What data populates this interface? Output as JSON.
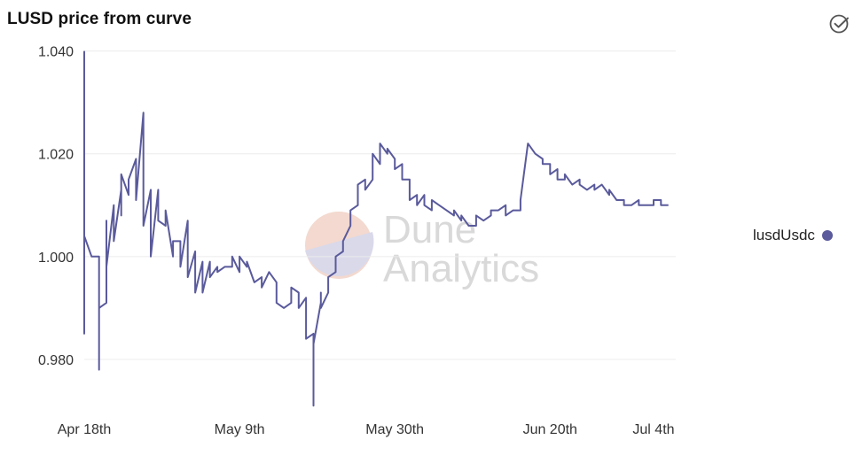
{
  "title": "LUSD price from curve",
  "legend": {
    "label": "lusdUsdc"
  },
  "watermark": {
    "line1": "Dune",
    "line2": "Analytics"
  },
  "colors": {
    "series": "#5a5a9c",
    "grid": "#ececec",
    "watermark_top": "#f3d9cf",
    "watermark_bottom": "#d9d9ea"
  },
  "icons": {
    "check": "check-circle-icon"
  },
  "chart_data": {
    "type": "line",
    "xlabel": "",
    "ylabel": "",
    "ylim": [
      0.97,
      1.042
    ],
    "xlim": [
      "2022-04-18",
      "2022-07-07"
    ],
    "y_ticks": [
      {
        "value": 1.04,
        "label": "1.040"
      },
      {
        "value": 1.02,
        "label": "1.020"
      },
      {
        "value": 1.0,
        "label": "1.000"
      },
      {
        "value": 0.98,
        "label": "0.980"
      }
    ],
    "x_ticks": [
      {
        "value": "2022-04-18",
        "label": "Apr 18th"
      },
      {
        "value": "2022-05-09",
        "label": "May 9th"
      },
      {
        "value": "2022-05-30",
        "label": "May 30th"
      },
      {
        "value": "2022-06-20",
        "label": "Jun 20th"
      },
      {
        "value": "2022-07-04",
        "label": "Jul 4th"
      }
    ],
    "grid": true,
    "legend_position": "right",
    "series": [
      {
        "name": "lusdUsdc",
        "x": [
          "2022-04-16",
          "2022-04-18",
          "2022-04-18",
          "2022-04-18",
          "2022-04-18",
          "2022-04-19",
          "2022-04-19",
          "2022-04-19",
          "2022-04-20",
          "2022-04-20",
          "2022-04-20",
          "2022-04-21",
          "2022-04-21",
          "2022-04-21",
          "2022-04-22",
          "2022-04-22",
          "2022-04-23",
          "2022-04-23",
          "2022-04-23",
          "2022-04-24",
          "2022-04-24",
          "2022-04-25",
          "2022-04-25",
          "2022-04-26",
          "2022-04-26",
          "2022-04-27",
          "2022-04-27",
          "2022-04-28",
          "2022-04-28",
          "2022-04-29",
          "2022-04-29",
          "2022-04-30",
          "2022-04-30",
          "2022-05-01",
          "2022-05-01",
          "2022-05-02",
          "2022-05-02",
          "2022-05-03",
          "2022-05-03",
          "2022-05-04",
          "2022-05-04",
          "2022-05-05",
          "2022-05-05",
          "2022-05-06",
          "2022-05-06",
          "2022-05-07",
          "2022-05-08",
          "2022-05-08",
          "2022-05-09",
          "2022-05-09",
          "2022-05-10",
          "2022-05-10",
          "2022-05-11",
          "2022-05-12",
          "2022-05-12",
          "2022-05-13",
          "2022-05-14",
          "2022-05-14",
          "2022-05-15",
          "2022-05-16",
          "2022-05-16",
          "2022-05-17",
          "2022-05-17",
          "2022-05-18",
          "2022-05-18",
          "2022-05-19",
          "2022-05-19",
          "2022-05-19",
          "2022-05-20",
          "2022-05-20",
          "2022-05-20",
          "2022-05-21",
          "2022-05-21",
          "2022-05-22",
          "2022-05-22",
          "2022-05-23",
          "2022-05-23",
          "2022-05-24",
          "2022-05-24",
          "2022-05-25",
          "2022-05-25",
          "2022-05-26",
          "2022-05-26",
          "2022-05-27",
          "2022-05-27",
          "2022-05-28",
          "2022-05-28",
          "2022-05-29",
          "2022-05-29",
          "2022-05-30",
          "2022-05-30",
          "2022-05-31",
          "2022-05-31",
          "2022-06-01",
          "2022-06-01",
          "2022-06-02",
          "2022-06-02",
          "2022-06-03",
          "2022-06-03",
          "2022-06-04",
          "2022-06-04",
          "2022-06-05",
          "2022-06-05",
          "2022-06-06",
          "2022-06-07",
          "2022-06-07",
          "2022-06-08",
          "2022-06-08",
          "2022-06-09",
          "2022-06-10",
          "2022-06-10",
          "2022-06-11",
          "2022-06-12",
          "2022-06-12",
          "2022-06-13",
          "2022-06-14",
          "2022-06-14",
          "2022-06-15",
          "2022-06-16",
          "2022-06-16",
          "2022-06-17",
          "2022-06-18",
          "2022-06-18",
          "2022-06-19",
          "2022-06-19",
          "2022-06-20",
          "2022-06-20",
          "2022-06-21",
          "2022-06-21",
          "2022-06-22",
          "2022-06-22",
          "2022-06-23",
          "2022-06-24",
          "2022-06-24",
          "2022-06-25",
          "2022-06-26",
          "2022-06-26",
          "2022-06-27",
          "2022-06-28",
          "2022-06-28",
          "2022-06-29",
          "2022-06-30",
          "2022-06-30",
          "2022-07-01",
          "2022-07-02",
          "2022-07-02",
          "2022-07-03",
          "2022-07-04",
          "2022-07-04",
          "2022-07-05",
          "2022-07-05",
          "2022-07-06"
        ],
        "y": [
          1.04,
          1.04,
          1.0,
          0.985,
          1.004,
          1.0,
          1.0,
          1.0,
          1.0,
          0.978,
          0.99,
          0.991,
          1.007,
          0.998,
          1.01,
          1.003,
          1.013,
          1.008,
          1.016,
          1.012,
          1.015,
          1.019,
          1.011,
          1.028,
          1.006,
          1.013,
          1.0,
          1.013,
          1.007,
          1.006,
          1.009,
          1.0,
          1.003,
          1.003,
          0.998,
          1.007,
          0.996,
          1.001,
          0.993,
          0.999,
          0.993,
          0.999,
          0.996,
          0.998,
          0.997,
          0.998,
          0.998,
          1.0,
          0.997,
          1.0,
          0.998,
          0.999,
          0.995,
          0.996,
          0.994,
          0.997,
          0.995,
          0.991,
          0.99,
          0.991,
          0.994,
          0.993,
          0.99,
          0.992,
          0.984,
          0.985,
          0.971,
          0.983,
          0.991,
          0.993,
          0.99,
          0.993,
          0.996,
          0.997,
          1.0,
          1.001,
          1.003,
          1.006,
          1.009,
          1.01,
          1.014,
          1.015,
          1.013,
          1.015,
          1.02,
          1.018,
          1.022,
          1.02,
          1.021,
          1.019,
          1.017,
          1.018,
          1.015,
          1.015,
          1.011,
          1.012,
          1.01,
          1.012,
          1.01,
          1.009,
          1.011,
          1.01,
          1.01,
          1.009,
          1.008,
          1.009,
          1.007,
          1.008,
          1.006,
          1.006,
          1.008,
          1.007,
          1.008,
          1.009,
          1.009,
          1.01,
          1.008,
          1.009,
          1.009,
          1.011,
          1.022,
          1.02,
          1.02,
          1.019,
          1.018,
          1.018,
          1.016,
          1.017,
          1.015,
          1.015,
          1.016,
          1.014,
          1.015,
          1.014,
          1.013,
          1.014,
          1.013,
          1.014,
          1.012,
          1.013,
          1.011,
          1.011,
          1.01,
          1.01,
          1.011,
          1.01,
          1.01,
          1.01,
          1.011,
          1.011,
          1.01,
          1.01
        ]
      }
    ]
  }
}
